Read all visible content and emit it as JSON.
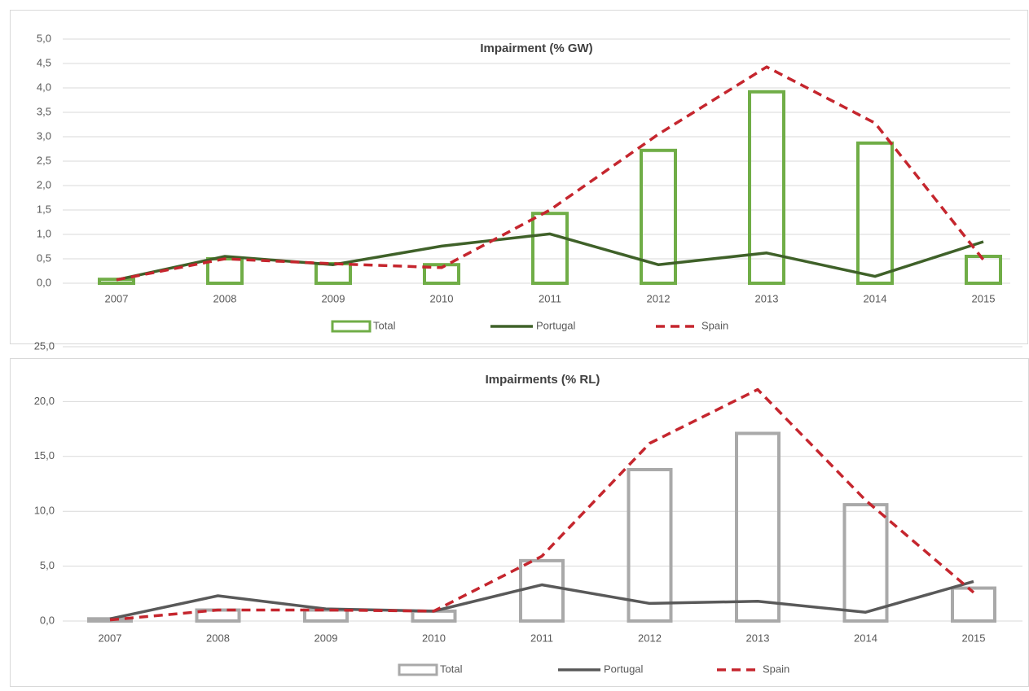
{
  "chart_data": [
    {
      "type": "combo",
      "title": "Impairment (% GW)",
      "categories": [
        "2007",
        "2008",
        "2009",
        "2010",
        "2011",
        "2012",
        "2013",
        "2014",
        "2015"
      ],
      "ylim": [
        0,
        5
      ],
      "yticks": [
        {
          "value": 0,
          "label": "0,0"
        },
        {
          "value": 0.5,
          "label": "0,5"
        },
        {
          "value": 1,
          "label": "1,0"
        },
        {
          "value": 1.5,
          "label": "1,5"
        },
        {
          "value": 2,
          "label": "2,0"
        },
        {
          "value": 2.5,
          "label": "2,5"
        },
        {
          "value": 3,
          "label": "3,0"
        },
        {
          "value": 3.5,
          "label": "3,5"
        },
        {
          "value": 4,
          "label": "4,0"
        },
        {
          "value": 4.5,
          "label": "4,5"
        },
        {
          "value": 5,
          "label": "5,0"
        }
      ],
      "grid": true,
      "legend": "bottom",
      "series": [
        {
          "name": "Total",
          "kind": "bar",
          "color": "#70ad47",
          "values": [
            0.08,
            0.5,
            0.4,
            0.38,
            1.43,
            2.72,
            3.92,
            2.87,
            0.55
          ]
        },
        {
          "name": "Portugal",
          "kind": "line",
          "color": "#3f6129",
          "values": [
            0.07,
            0.55,
            0.38,
            0.76,
            1.01,
            0.38,
            0.62,
            0.14,
            0.85
          ]
        },
        {
          "name": "Spain",
          "kind": "line",
          "dashed": true,
          "color": "#c5262e",
          "values": [
            0.07,
            0.5,
            0.4,
            0.32,
            1.5,
            3.05,
            4.43,
            3.28,
            0.48
          ]
        }
      ]
    },
    {
      "type": "combo",
      "title": "Impairments  (% RL)",
      "categories": [
        "2007",
        "2008",
        "2009",
        "2010",
        "2011",
        "2012",
        "2013",
        "2014",
        "2015"
      ],
      "ylim": [
        0,
        25
      ],
      "yticks": [
        {
          "value": 0,
          "label": "0,0"
        },
        {
          "value": 5,
          "label": "5,0"
        },
        {
          "value": 10,
          "label": "10,0"
        },
        {
          "value": 15,
          "label": "15,0"
        },
        {
          "value": 20,
          "label": "20,0"
        },
        {
          "value": 25,
          "label": "25,0"
        }
      ],
      "grid": true,
      "legend": "bottom",
      "series": [
        {
          "name": "Total",
          "kind": "bar",
          "color": "#a9a9a9",
          "values": [
            0.2,
            1.0,
            1.0,
            0.9,
            5.5,
            13.8,
            17.1,
            10.6,
            3.0
          ]
        },
        {
          "name": "Portugal",
          "kind": "line",
          "color": "#595959",
          "values": [
            0.2,
            2.3,
            1.1,
            0.9,
            3.3,
            1.6,
            1.8,
            0.8,
            3.6
          ]
        },
        {
          "name": "Spain",
          "kind": "line",
          "dashed": true,
          "color": "#c5262e",
          "values": [
            0.1,
            1.0,
            1.0,
            0.9,
            5.9,
            16.2,
            21.1,
            11.0,
            2.6
          ]
        }
      ]
    }
  ]
}
